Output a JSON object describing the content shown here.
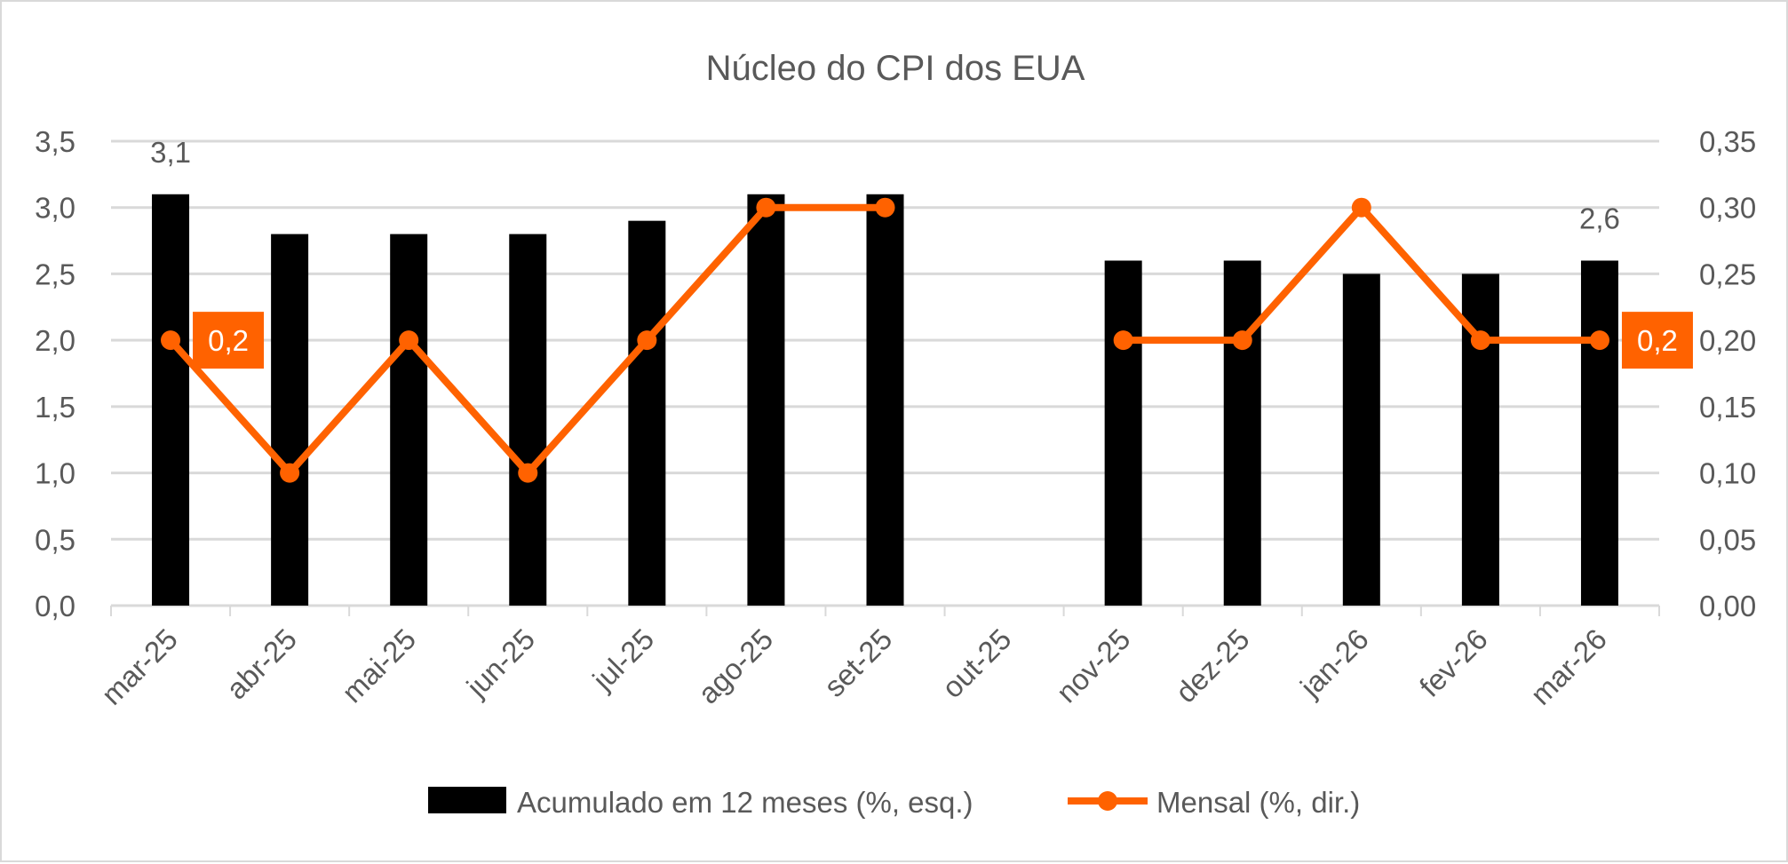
{
  "chart_data": {
    "type": "bar+line",
    "title": "Núcleo do CPI dos EUA",
    "categories": [
      "mar-25",
      "abr-25",
      "mai-25",
      "jun-25",
      "jul-25",
      "ago-25",
      "set-25",
      "out-25",
      "nov-25",
      "dez-25",
      "jan-26",
      "fev-26",
      "mar-26"
    ],
    "series": [
      {
        "name": "Acumulado em 12 meses (%, esq.)",
        "type": "bar",
        "axis": "left",
        "color": "#000000",
        "values": [
          3.1,
          2.8,
          2.8,
          2.8,
          2.9,
          3.1,
          3.1,
          null,
          2.6,
          2.6,
          2.5,
          2.5,
          2.6
        ]
      },
      {
        "name": "Mensal (%, dir.)",
        "type": "line",
        "axis": "right",
        "color": "#FF6200",
        "values": [
          0.2,
          0.1,
          0.2,
          0.1,
          0.2,
          0.3,
          0.3,
          null,
          0.2,
          0.2,
          0.3,
          0.2,
          0.2
        ]
      }
    ],
    "y_left": {
      "range": [
        0,
        3.5
      ],
      "ticks": [
        "0,0",
        "0,5",
        "1,0",
        "1,5",
        "2,0",
        "2,5",
        "3,0",
        "3,5"
      ]
    },
    "y_right": {
      "range": [
        0,
        0.35
      ],
      "ticks": [
        "0,00",
        "0,05",
        "0,10",
        "0,15",
        "0,20",
        "0,25",
        "0,30",
        "0,35"
      ]
    },
    "data_labels": [
      {
        "series": 0,
        "index": 0,
        "text": "3,1"
      },
      {
        "series": 0,
        "index": 12,
        "text": "2,6"
      },
      {
        "series": 1,
        "index": 0,
        "text": "0,2"
      },
      {
        "series": 1,
        "index": 12,
        "text": "0,2"
      }
    ],
    "grid": true,
    "legend": "bottom"
  }
}
